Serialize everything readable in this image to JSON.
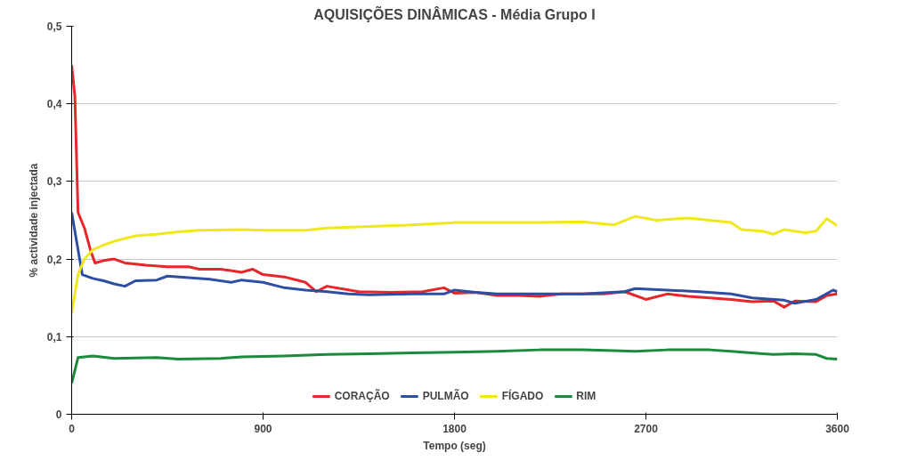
{
  "chart_data": {
    "type": "line",
    "title": "AQUISIÇÕES DINÂMICAS - Média Grupo I",
    "xlabel": "Tempo (seg)",
    "ylabel": "% actividade injectada",
    "xlim": [
      0,
      3600
    ],
    "xticks": [
      0,
      900,
      1800,
      2700,
      3600
    ],
    "ylim": [
      0,
      0.5
    ],
    "yticks": [
      0,
      {
        "value": 0.1,
        "label": "0,1"
      },
      {
        "value": 0.2,
        "label": "0,2"
      },
      {
        "value": 0.3,
        "label": "0,3"
      },
      {
        "value": 0.4,
        "label": "0,4"
      },
      {
        "value": 0.5,
        "label": "0,5"
      }
    ],
    "grid": "y",
    "legend": "bottom",
    "line_style": "solid",
    "series": [
      {
        "name": "CORAÇÃO",
        "color": "#e8262a",
        "x": [
          0,
          15,
          30,
          60,
          90,
          110,
          150,
          200,
          250,
          350,
          450,
          550,
          600,
          700,
          800,
          850,
          900,
          1000,
          1100,
          1150,
          1200,
          1350,
          1500,
          1650,
          1750,
          1800,
          1900,
          2000,
          2100,
          2200,
          2300,
          2400,
          2500,
          2600,
          2700,
          2800,
          2900,
          3000,
          3100,
          3200,
          3300,
          3350,
          3400,
          3500,
          3550,
          3600
        ],
        "values": [
          0.45,
          0.41,
          0.26,
          0.24,
          0.21,
          0.195,
          0.198,
          0.2,
          0.195,
          0.192,
          0.19,
          0.19,
          0.187,
          0.187,
          0.183,
          0.187,
          0.18,
          0.177,
          0.17,
          0.158,
          0.165,
          0.158,
          0.157,
          0.158,
          0.163,
          0.156,
          0.157,
          0.153,
          0.153,
          0.152,
          0.155,
          0.155,
          0.155,
          0.158,
          0.148,
          0.155,
          0.152,
          0.15,
          0.148,
          0.145,
          0.146,
          0.138,
          0.146,
          0.145,
          0.153,
          0.155
        ]
      },
      {
        "name": "PULMÃO",
        "color": "#2e4ea2",
        "x": [
          0,
          50,
          100,
          150,
          200,
          250,
          300,
          400,
          450,
          550,
          650,
          750,
          800,
          900,
          1000,
          1100,
          1200,
          1300,
          1400,
          1600,
          1750,
          1800,
          1900,
          2000,
          2200,
          2400,
          2600,
          2650,
          2800,
          2950,
          3100,
          3200,
          3350,
          3400,
          3500,
          3580,
          3600
        ],
        "values": [
          0.26,
          0.18,
          0.175,
          0.172,
          0.168,
          0.165,
          0.172,
          0.173,
          0.178,
          0.176,
          0.174,
          0.17,
          0.173,
          0.17,
          0.163,
          0.16,
          0.158,
          0.155,
          0.154,
          0.155,
          0.155,
          0.16,
          0.157,
          0.155,
          0.155,
          0.155,
          0.158,
          0.162,
          0.16,
          0.158,
          0.155,
          0.15,
          0.147,
          0.143,
          0.148,
          0.16,
          0.158
        ]
      },
      {
        "name": "FÍGADO",
        "color": "#f0e81c",
        "x": [
          0,
          30,
          60,
          100,
          150,
          200,
          300,
          400,
          500,
          600,
          800,
          900,
          1100,
          1200,
          1400,
          1600,
          1800,
          2000,
          2200,
          2400,
          2550,
          2650,
          2750,
          2900,
          3100,
          3150,
          3250,
          3300,
          3350,
          3450,
          3500,
          3550,
          3600
        ],
        "values": [
          0.13,
          0.18,
          0.2,
          0.212,
          0.218,
          0.223,
          0.23,
          0.232,
          0.235,
          0.237,
          0.238,
          0.237,
          0.237,
          0.24,
          0.242,
          0.244,
          0.247,
          0.247,
          0.247,
          0.248,
          0.244,
          0.255,
          0.25,
          0.253,
          0.247,
          0.238,
          0.236,
          0.232,
          0.238,
          0.234,
          0.236,
          0.252,
          0.243
        ]
      },
      {
        "name": "RIM",
        "color": "#1b8a3a",
        "x": [
          0,
          30,
          100,
          200,
          400,
          500,
          700,
          800,
          1000,
          1200,
          1400,
          1600,
          1800,
          2000,
          2200,
          2400,
          2550,
          2650,
          2800,
          3000,
          3100,
          3250,
          3300,
          3400,
          3500,
          3550,
          3600
        ],
        "values": [
          0.04,
          0.073,
          0.075,
          0.072,
          0.073,
          0.071,
          0.072,
          0.074,
          0.075,
          0.077,
          0.078,
          0.079,
          0.08,
          0.081,
          0.083,
          0.083,
          0.082,
          0.081,
          0.083,
          0.083,
          0.081,
          0.078,
          0.077,
          0.078,
          0.077,
          0.072,
          0.071
        ]
      }
    ]
  }
}
